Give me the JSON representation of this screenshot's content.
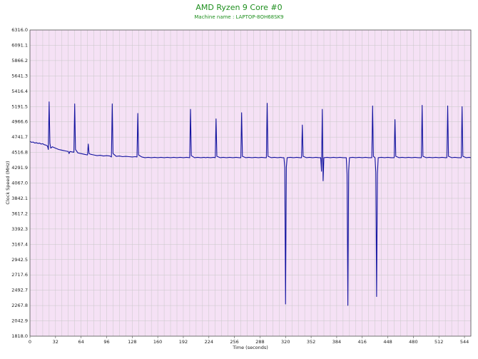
{
  "chart_data": {
    "type": "line",
    "title": "AMD Ryzen 9 Core #0",
    "subtitle": "Machine name : LAPTOP-8OH68SK9",
    "xlabel": "Time (seconds)",
    "ylabel": "Clock Speed (MHz)",
    "xlim": [
      0,
      552
    ],
    "ylim": [
      1818.0,
      6316.0
    ],
    "x_ticks": [
      0,
      32,
      64,
      96,
      128,
      160,
      192,
      224,
      256,
      288,
      320,
      352,
      384,
      416,
      448,
      480,
      512,
      544
    ],
    "y_ticks": [
      1818.0,
      2042.9,
      2267.8,
      2492.7,
      2717.6,
      2942.5,
      3167.4,
      3392.3,
      3617.2,
      3842.1,
      4067.0,
      4291.9,
      4516.8,
      4741.7,
      4966.6,
      5191.5,
      5416.4,
      5641.3,
      5866.2,
      6091.1,
      6316.0
    ],
    "grid": true,
    "colors": {
      "line": "#1414a0",
      "plot_background": "#f5e1f5",
      "grid": "#c8c8c8",
      "title": "#1e8f1e"
    },
    "series": [
      {
        "values": [
          [
            0,
            4680
          ],
          [
            2,
            4665
          ],
          [
            4,
            4670
          ],
          [
            6,
            4655
          ],
          [
            8,
            4660
          ],
          [
            10,
            4650
          ],
          [
            12,
            4655
          ],
          [
            14,
            4640
          ],
          [
            16,
            4645
          ],
          [
            18,
            4630
          ],
          [
            20,
            4625
          ],
          [
            22,
            4610
          ],
          [
            23,
            4560
          ],
          [
            24,
            5260
          ],
          [
            25,
            4650
          ],
          [
            26,
            4580
          ],
          [
            28,
            4600
          ],
          [
            30,
            4590
          ],
          [
            32,
            4580
          ],
          [
            34,
            4570
          ],
          [
            36,
            4560
          ],
          [
            38,
            4555
          ],
          [
            40,
            4550
          ],
          [
            42,
            4545
          ],
          [
            44,
            4540
          ],
          [
            46,
            4535
          ],
          [
            48,
            4530
          ],
          [
            49,
            4500
          ],
          [
            50,
            4530
          ],
          [
            55,
            4520
          ],
          [
            56,
            5230
          ],
          [
            57,
            4560
          ],
          [
            60,
            4510
          ],
          [
            64,
            4500
          ],
          [
            68,
            4490
          ],
          [
            72,
            4480
          ],
          [
            73,
            4640
          ],
          [
            74,
            4500
          ],
          [
            76,
            4490
          ],
          [
            80,
            4480
          ],
          [
            84,
            4470
          ],
          [
            88,
            4475
          ],
          [
            92,
            4465
          ],
          [
            96,
            4470
          ],
          [
            100,
            4465
          ],
          [
            102,
            4450
          ],
          [
            103,
            5230
          ],
          [
            104,
            4500
          ],
          [
            108,
            4460
          ],
          [
            112,
            4465
          ],
          [
            116,
            4455
          ],
          [
            120,
            4460
          ],
          [
            124,
            4455
          ],
          [
            128,
            4450
          ],
          [
            132,
            4455
          ],
          [
            134,
            4450
          ],
          [
            135,
            5090
          ],
          [
            136,
            4480
          ],
          [
            140,
            4450
          ],
          [
            144,
            4440
          ],
          [
            148,
            4445
          ],
          [
            152,
            4440
          ],
          [
            156,
            4445
          ],
          [
            160,
            4440
          ],
          [
            164,
            4445
          ],
          [
            168,
            4440
          ],
          [
            172,
            4445
          ],
          [
            176,
            4440
          ],
          [
            180,
            4445
          ],
          [
            184,
            4440
          ],
          [
            188,
            4445
          ],
          [
            192,
            4440
          ],
          [
            196,
            4445
          ],
          [
            200,
            4440
          ],
          [
            201,
            5150
          ],
          [
            202,
            4470
          ],
          [
            206,
            4440
          ],
          [
            210,
            4445
          ],
          [
            214,
            4440
          ],
          [
            218,
            4445
          ],
          [
            220,
            4440
          ],
          [
            222,
            4445
          ],
          [
            226,
            4440
          ],
          [
            230,
            4445
          ],
          [
            232,
            4440
          ],
          [
            233,
            5010
          ],
          [
            234,
            4460
          ],
          [
            238,
            4440
          ],
          [
            242,
            4445
          ],
          [
            246,
            4440
          ],
          [
            250,
            4445
          ],
          [
            254,
            4440
          ],
          [
            258,
            4445
          ],
          [
            262,
            4440
          ],
          [
            264,
            4440
          ],
          [
            265,
            5100
          ],
          [
            266,
            4460
          ],
          [
            270,
            4440
          ],
          [
            274,
            4445
          ],
          [
            278,
            4440
          ],
          [
            282,
            4445
          ],
          [
            286,
            4440
          ],
          [
            290,
            4445
          ],
          [
            294,
            4440
          ],
          [
            296,
            4440
          ],
          [
            297,
            5240
          ],
          [
            298,
            4460
          ],
          [
            302,
            4440
          ],
          [
            306,
            4445
          ],
          [
            310,
            4440
          ],
          [
            314,
            4445
          ],
          [
            316,
            4440
          ],
          [
            318,
            4440
          ],
          [
            319,
            4300
          ],
          [
            320,
            2290
          ],
          [
            321,
            4300
          ],
          [
            322,
            4440
          ],
          [
            326,
            4445
          ],
          [
            330,
            4440
          ],
          [
            334,
            4445
          ],
          [
            338,
            4440
          ],
          [
            340,
            4440
          ],
          [
            341,
            4920
          ],
          [
            342,
            4460
          ],
          [
            346,
            4440
          ],
          [
            350,
            4445
          ],
          [
            354,
            4440
          ],
          [
            358,
            4445
          ],
          [
            362,
            4440
          ],
          [
            364,
            4440
          ],
          [
            365,
            4240
          ],
          [
            366,
            5150
          ],
          [
            367,
            4100
          ],
          [
            368,
            4440
          ],
          [
            372,
            4445
          ],
          [
            376,
            4440
          ],
          [
            380,
            4445
          ],
          [
            384,
            4440
          ],
          [
            388,
            4445
          ],
          [
            392,
            4440
          ],
          [
            396,
            4440
          ],
          [
            397,
            4200
          ],
          [
            398,
            2270
          ],
          [
            399,
            4250
          ],
          [
            400,
            4440
          ],
          [
            404,
            4445
          ],
          [
            408,
            4440
          ],
          [
            412,
            4445
          ],
          [
            416,
            4440
          ],
          [
            420,
            4445
          ],
          [
            424,
            4440
          ],
          [
            428,
            4440
          ],
          [
            429,
            5200
          ],
          [
            430,
            4460
          ],
          [
            432,
            4440
          ],
          [
            433,
            4230
          ],
          [
            434,
            2400
          ],
          [
            435,
            4200
          ],
          [
            436,
            4440
          ],
          [
            440,
            4445
          ],
          [
            444,
            4440
          ],
          [
            448,
            4445
          ],
          [
            452,
            4440
          ],
          [
            456,
            4440
          ],
          [
            457,
            5000
          ],
          [
            458,
            4460
          ],
          [
            462,
            4440
          ],
          [
            466,
            4445
          ],
          [
            470,
            4440
          ],
          [
            474,
            4445
          ],
          [
            478,
            4440
          ],
          [
            482,
            4445
          ],
          [
            486,
            4440
          ],
          [
            490,
            4440
          ],
          [
            491,
            5210
          ],
          [
            492,
            4460
          ],
          [
            496,
            4440
          ],
          [
            500,
            4445
          ],
          [
            504,
            4440
          ],
          [
            508,
            4445
          ],
          [
            512,
            4440
          ],
          [
            516,
            4445
          ],
          [
            520,
            4440
          ],
          [
            522,
            4440
          ],
          [
            523,
            5200
          ],
          [
            524,
            4460
          ],
          [
            528,
            4440
          ],
          [
            532,
            4445
          ],
          [
            536,
            4440
          ],
          [
            540,
            4440
          ],
          [
            541,
            5190
          ],
          [
            542,
            4460
          ],
          [
            546,
            4440
          ],
          [
            550,
            4445
          ],
          [
            552,
            4440
          ]
        ]
      }
    ]
  }
}
